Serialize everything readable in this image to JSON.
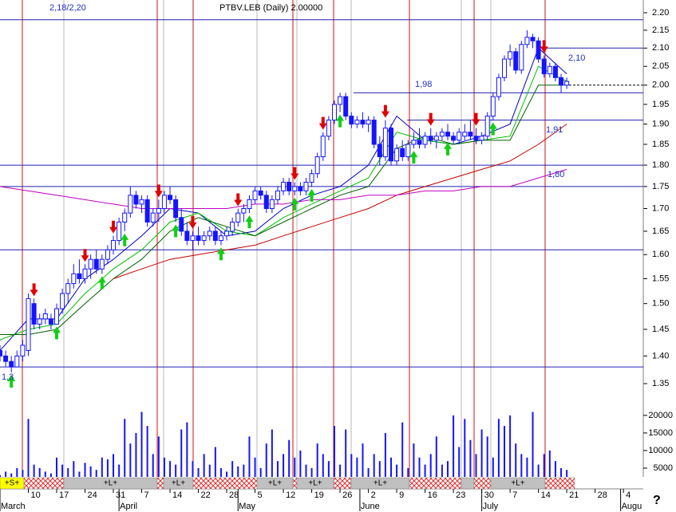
{
  "chart_data": {
    "type": "candlestick",
    "title": "PTBV.LEB (Daily) 2.00000",
    "log_scale": true,
    "ylim": [
      1.35,
      2.2
    ],
    "yticks": [
      {
        "value": 2.2,
        "label": "2.20"
      },
      2.15,
      {
        "value": 2.1,
        "label": "2.10"
      },
      2.05,
      {
        "value": 2.0,
        "label": "2.00"
      },
      1.95,
      {
        "value": 1.9,
        "label": "1.90"
      },
      1.85,
      {
        "value": 1.8,
        "label": "1.80"
      },
      1.75,
      {
        "value": 1.7,
        "label": "1.70"
      },
      1.65,
      {
        "value": 1.6,
        "label": "1.60"
      },
      1.55,
      {
        "value": 1.5,
        "label": "1.50"
      },
      1.45,
      {
        "value": 1.4,
        "label": "1.40"
      },
      1.35
    ],
    "xlim": [
      0,
      113.5
    ],
    "xticks": [
      {
        "value": 5,
        "label": "10"
      },
      {
        "value": 10,
        "label": "17"
      },
      {
        "value": 15,
        "label": "24"
      },
      {
        "value": 20,
        "label": "31"
      },
      {
        "value": 25,
        "label": "7"
      },
      {
        "value": 30,
        "label": "14"
      },
      {
        "value": 35,
        "label": "22"
      },
      {
        "value": 40,
        "label": "28"
      },
      {
        "value": 45,
        "label": "5"
      },
      {
        "value": 50,
        "label": "12"
      },
      {
        "value": 55,
        "label": "19"
      },
      {
        "value": 60,
        "label": "26"
      },
      {
        "value": 65,
        "label": "2"
      },
      {
        "value": 70,
        "label": "9"
      },
      {
        "value": 75,
        "label": "16"
      },
      {
        "value": 80,
        "label": "23"
      },
      {
        "value": 85,
        "label": "30"
      },
      {
        "value": 90,
        "label": "7"
      },
      {
        "value": 95,
        "label": "14"
      },
      {
        "value": 100,
        "label": "21"
      },
      {
        "value": 105,
        "label": "28"
      },
      {
        "value": 110,
        "label": "4"
      }
    ],
    "month_ticks": [
      {
        "value": 0,
        "label": "March"
      },
      {
        "value": 21,
        "label": "April"
      },
      {
        "value": 42,
        "label": "May"
      },
      {
        "value": 63.5,
        "label": "June"
      },
      {
        "value": 85,
        "label": "July"
      },
      {
        "value": 109.5,
        "label": "Augu"
      }
    ],
    "color": "#1414ff",
    "candles": {
      "open": [
        1.41,
        1.4,
        1.39,
        1.38,
        1.4,
        1.41,
        1.5,
        1.46,
        1.47,
        1.47,
        1.46,
        1.49,
        1.52,
        1.54,
        1.56,
        1.55,
        1.57,
        1.59,
        1.57,
        1.59,
        1.61,
        1.63,
        1.67,
        1.69,
        1.73,
        1.71,
        1.72,
        1.67,
        1.69,
        1.7,
        1.73,
        1.72,
        1.68,
        1.65,
        1.63,
        1.64,
        1.63,
        1.64,
        1.65,
        1.63,
        1.64,
        1.65,
        1.67,
        1.69,
        1.7,
        1.72,
        1.74,
        1.73,
        1.7,
        1.72,
        1.74,
        1.76,
        1.74,
        1.75,
        1.74,
        1.76,
        1.78,
        1.82,
        1.87,
        1.91,
        1.95,
        1.97,
        1.92,
        1.9,
        1.91,
        1.9,
        1.91,
        1.85,
        1.82,
        1.89,
        1.81,
        1.84,
        1.82,
        1.85,
        1.86,
        1.85,
        1.87,
        1.86,
        1.87,
        1.88,
        1.87,
        1.86,
        1.87,
        1.88,
        1.87,
        1.86,
        1.87,
        1.92,
        1.97,
        2.02,
        2.07,
        2.09,
        2.04,
        2.11,
        2.13,
        2.12,
        2.07,
        2.03,
        2.05,
        2.02,
        2.0
      ],
      "high": [
        1.42,
        1.41,
        1.4,
        1.41,
        1.43,
        1.52,
        1.51,
        1.48,
        1.49,
        1.48,
        1.5,
        1.53,
        1.55,
        1.58,
        1.59,
        1.58,
        1.6,
        1.61,
        1.6,
        1.62,
        1.64,
        1.68,
        1.7,
        1.75,
        1.74,
        1.73,
        1.73,
        1.7,
        1.72,
        1.74,
        1.75,
        1.73,
        1.7,
        1.67,
        1.65,
        1.66,
        1.65,
        1.66,
        1.66,
        1.65,
        1.66,
        1.68,
        1.7,
        1.71,
        1.73,
        1.75,
        1.75,
        1.74,
        1.73,
        1.75,
        1.77,
        1.77,
        1.76,
        1.76,
        1.77,
        1.79,
        1.83,
        1.88,
        1.92,
        1.96,
        1.98,
        1.98,
        1.93,
        1.92,
        1.93,
        1.92,
        1.92,
        1.87,
        1.91,
        1.9,
        1.85,
        1.86,
        1.86,
        1.88,
        1.89,
        1.88,
        1.89,
        1.88,
        1.89,
        1.9,
        1.88,
        1.89,
        1.9,
        1.91,
        1.89,
        1.88,
        1.93,
        1.98,
        2.03,
        2.08,
        2.11,
        2.1,
        2.12,
        2.15,
        2.14,
        2.13,
        2.08,
        2.06,
        2.06,
        2.03,
        2.02
      ],
      "low": [
        1.39,
        1.38,
        1.37,
        1.38,
        1.39,
        1.4,
        1.45,
        1.45,
        1.46,
        1.45,
        1.46,
        1.48,
        1.5,
        1.53,
        1.54,
        1.54,
        1.55,
        1.56,
        1.56,
        1.58,
        1.6,
        1.62,
        1.65,
        1.68,
        1.7,
        1.69,
        1.66,
        1.66,
        1.67,
        1.69,
        1.71,
        1.67,
        1.64,
        1.62,
        1.61,
        1.62,
        1.62,
        1.63,
        1.62,
        1.62,
        1.63,
        1.64,
        1.66,
        1.67,
        1.69,
        1.71,
        1.72,
        1.69,
        1.69,
        1.71,
        1.73,
        1.73,
        1.73,
        1.73,
        1.73,
        1.75,
        1.77,
        1.81,
        1.86,
        1.9,
        1.93,
        1.91,
        1.89,
        1.89,
        1.89,
        1.88,
        1.84,
        1.8,
        1.81,
        1.8,
        1.8,
        1.81,
        1.81,
        1.84,
        1.84,
        1.84,
        1.85,
        1.84,
        1.86,
        1.86,
        1.85,
        1.85,
        1.86,
        1.86,
        1.85,
        1.85,
        1.86,
        1.91,
        1.96,
        2.01,
        2.05,
        2.03,
        2.03,
        2.1,
        2.1,
        2.06,
        2.02,
        2.02,
        2.01,
        1.98,
        1.99
      ],
      "close": [
        1.4,
        1.39,
        1.38,
        1.4,
        1.42,
        1.51,
        1.46,
        1.47,
        1.48,
        1.46,
        1.49,
        1.52,
        1.54,
        1.56,
        1.55,
        1.57,
        1.59,
        1.57,
        1.59,
        1.61,
        1.63,
        1.67,
        1.69,
        1.73,
        1.71,
        1.72,
        1.67,
        1.69,
        1.7,
        1.73,
        1.72,
        1.68,
        1.65,
        1.63,
        1.64,
        1.63,
        1.64,
        1.65,
        1.63,
        1.64,
        1.65,
        1.67,
        1.69,
        1.7,
        1.72,
        1.74,
        1.73,
        1.7,
        1.72,
        1.74,
        1.76,
        1.74,
        1.75,
        1.74,
        1.76,
        1.78,
        1.82,
        1.87,
        1.91,
        1.95,
        1.97,
        1.92,
        1.9,
        1.91,
        1.9,
        1.91,
        1.85,
        1.82,
        1.89,
        1.81,
        1.84,
        1.82,
        1.85,
        1.86,
        1.85,
        1.87,
        1.86,
        1.87,
        1.88,
        1.87,
        1.86,
        1.88,
        1.88,
        1.87,
        1.86,
        1.87,
        1.92,
        1.97,
        2.02,
        2.07,
        2.09,
        2.04,
        2.11,
        2.13,
        2.12,
        2.07,
        2.03,
        2.05,
        2.02,
        2.0,
        2.01
      ]
    },
    "ma": [
      {
        "color": "#0000c0",
        "x": [
          0,
          5,
          10,
          15,
          20,
          25,
          30,
          35,
          40,
          45,
          50,
          55,
          60,
          65,
          70,
          75,
          80,
          85,
          90,
          95,
          100
        ],
        "values": [
          1.41,
          1.47,
          1.47,
          1.55,
          1.59,
          1.64,
          1.7,
          1.69,
          1.64,
          1.65,
          1.7,
          1.73,
          1.75,
          1.8,
          1.92,
          1.86,
          1.85,
          1.87,
          1.9,
          2.1,
          2.03
        ]
      },
      {
        "color": "#00c000",
        "x": [
          0,
          5,
          10,
          15,
          20,
          25,
          30,
          35,
          40,
          45,
          50,
          55,
          60,
          65,
          70,
          75,
          80,
          85,
          90,
          95,
          100
        ],
        "values": [
          1.43,
          1.45,
          1.46,
          1.52,
          1.57,
          1.61,
          1.67,
          1.69,
          1.65,
          1.64,
          1.68,
          1.71,
          1.74,
          1.77,
          1.88,
          1.86,
          1.85,
          1.86,
          1.87,
          2.05,
          2.01
        ]
      },
      {
        "color": "#006000",
        "x": [
          0,
          5,
          10,
          15,
          20,
          25,
          30,
          35,
          40,
          45,
          50,
          55,
          60,
          65,
          70,
          75,
          80,
          85,
          90,
          95,
          100
        ],
        "values": [
          1.44,
          1.44,
          1.45,
          1.5,
          1.55,
          1.59,
          1.65,
          1.68,
          1.66,
          1.64,
          1.67,
          1.7,
          1.73,
          1.75,
          1.84,
          1.87,
          1.85,
          1.86,
          1.86,
          2.0,
          2.0
        ]
      },
      {
        "color": "#c00000",
        "x": [
          0,
          5,
          10,
          15,
          20,
          25,
          30,
          35,
          40,
          45,
          50,
          55,
          60,
          65,
          70,
          75,
          80,
          85,
          90,
          95,
          100
        ],
        "values": [
          null,
          null,
          null,
          null,
          1.55,
          1.57,
          1.59,
          1.6,
          1.61,
          1.62,
          1.64,
          1.66,
          1.68,
          1.7,
          1.73,
          1.75,
          1.77,
          1.79,
          1.81,
          1.85,
          1.9
        ]
      },
      {
        "color": "#c000c0",
        "x": [
          0,
          5,
          10,
          15,
          20,
          25,
          30,
          35,
          40,
          45,
          50,
          55,
          60,
          65,
          70,
          75,
          80,
          85,
          90,
          95,
          100
        ],
        "values": [
          1.75,
          1.74,
          1.73,
          1.72,
          1.71,
          1.7,
          1.7,
          1.7,
          1.7,
          1.71,
          1.71,
          1.72,
          1.72,
          1.73,
          1.73,
          1.74,
          1.74,
          1.75,
          1.75,
          1.77,
          1.79
        ]
      }
    ],
    "hlines": [
      2.18,
      2.1,
      1.98,
      1.91,
      1.8,
      1.75,
      1.61,
      1.38
    ],
    "dashed_line": 2.0,
    "annotations": [
      "2,18/2,20",
      "1,98",
      "2,10",
      "1,91",
      "1,80",
      "1,3"
    ],
    "volume": {
      "color": "#1414ff",
      "ylim": [
        2500,
        23600
      ],
      "yticks": [
        5000,
        10000,
        15000,
        20000
      ],
      "values": [
        3000,
        4000,
        3500,
        5000,
        4500,
        19000,
        6000,
        5000,
        4000,
        3500,
        8000,
        6000,
        5000,
        7000,
        4000,
        6500,
        5500,
        4500,
        8000,
        7500,
        9000,
        6000,
        19000,
        12000,
        15000,
        21000,
        17000,
        9000,
        14000,
        8000,
        7000,
        6000,
        16000,
        18000,
        7000,
        5000,
        9000,
        6000,
        11000,
        5000,
        4000,
        7000,
        5500,
        6000,
        14000,
        8000,
        5000,
        12000,
        16000,
        7000,
        9000,
        13000,
        8000,
        10000,
        6000,
        5000,
        12000,
        9000,
        7000,
        17000,
        6000,
        16000,
        9000,
        8000,
        12000,
        5000,
        9000,
        7000,
        15000,
        8000,
        6000,
        18000,
        5000,
        12000,
        8000,
        6000,
        9000,
        14000,
        6000,
        7000,
        20000,
        11000,
        19000,
        13000,
        9000,
        16000,
        14000,
        8000,
        19000,
        17000,
        20000,
        12000,
        9000,
        8000,
        21000,
        6000,
        9000,
        10000,
        7000,
        5000,
        4500
      ]
    },
    "signal_labels": [
      "+S+",
      "+L+",
      "+L+",
      "+L+",
      "+L+",
      "+L+",
      "+L+"
    ],
    "help": "?"
  }
}
